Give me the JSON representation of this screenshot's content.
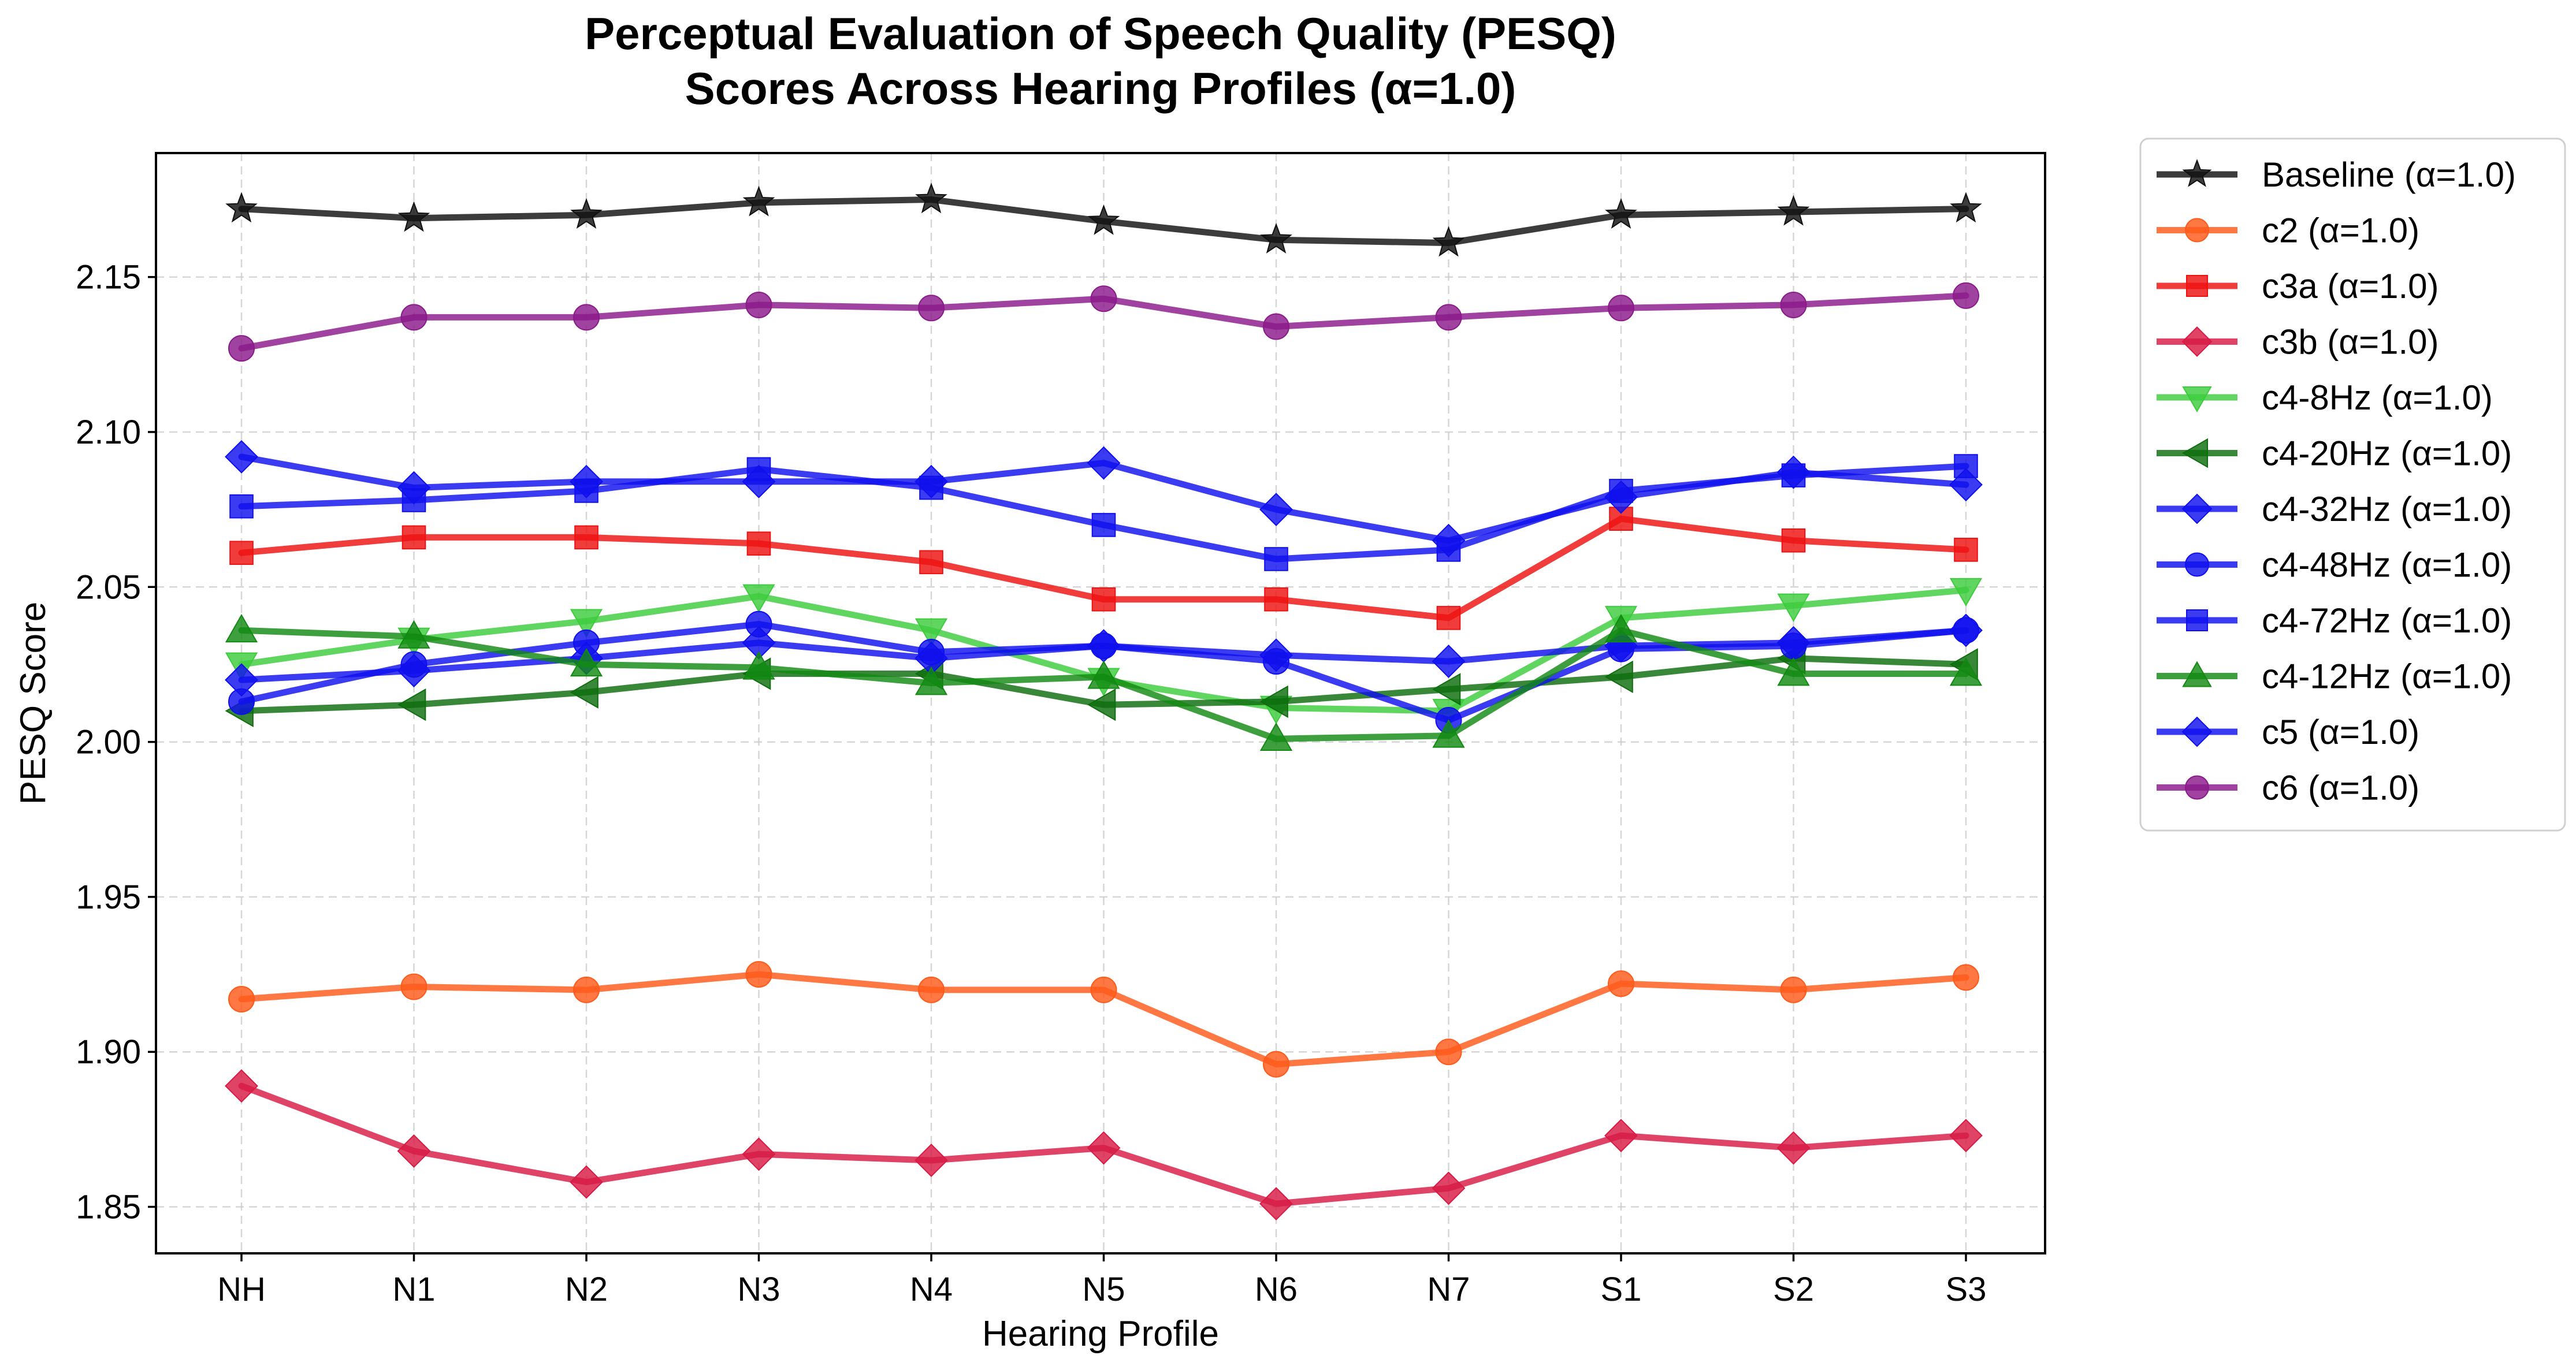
{
  "chart_data": {
    "type": "line",
    "title": [
      "Perceptual Evaluation of Speech Quality (PESQ)",
      "Scores Across Hearing Profiles (α=1.0)"
    ],
    "xlabel": "Hearing Profile",
    "ylabel": "PESQ Score",
    "categories": [
      "NH",
      "N1",
      "N2",
      "N3",
      "N4",
      "N5",
      "N6",
      "N7",
      "S1",
      "S2",
      "S3"
    ],
    "ylim": [
      1.835,
      2.19
    ],
    "yticks": [
      1.85,
      1.9,
      1.95,
      2.0,
      2.05,
      2.1,
      2.15
    ],
    "ytick_labels": [
      "1.85",
      "1.90",
      "1.95",
      "2.00",
      "2.05",
      "2.10",
      "2.15"
    ],
    "grid": true,
    "legend_position": "outside-right-top",
    "series": [
      {
        "name": "Baseline (α=1.0)",
        "color": "#111111",
        "marker": "star",
        "values": [
          2.172,
          2.169,
          2.17,
          2.174,
          2.175,
          2.168,
          2.162,
          2.161,
          2.17,
          2.171,
          2.172
        ]
      },
      {
        "name": "c2 (α=1.0)",
        "color": "#ff5a1a",
        "marker": "circle",
        "values": [
          1.917,
          1.921,
          1.92,
          1.925,
          1.92,
          1.92,
          1.896,
          1.9,
          1.922,
          1.92,
          1.924
        ]
      },
      {
        "name": "c3a (α=1.0)",
        "color": "#ee1111",
        "marker": "square",
        "values": [
          2.061,
          2.066,
          2.066,
          2.064,
          2.058,
          2.046,
          2.046,
          2.04,
          2.072,
          2.065,
          2.062
        ]
      },
      {
        "name": "c3b (α=1.0)",
        "color": "#d81b45",
        "marker": "diamond",
        "values": [
          1.889,
          1.868,
          1.858,
          1.867,
          1.865,
          1.869,
          1.851,
          1.856,
          1.873,
          1.869,
          1.873
        ]
      },
      {
        "name": "c4-8Hz (α=1.0)",
        "color": "#3dcc3d",
        "marker": "triangle-down",
        "values": [
          2.025,
          2.033,
          2.039,
          2.047,
          2.036,
          2.02,
          2.011,
          2.01,
          2.04,
          2.044,
          2.049
        ]
      },
      {
        "name": "c4-20Hz (α=1.0)",
        "color": "#0e6e0e",
        "marker": "triangle-left",
        "values": [
          2.01,
          2.012,
          2.016,
          2.022,
          2.022,
          2.012,
          2.013,
          2.017,
          2.021,
          2.027,
          2.025
        ]
      },
      {
        "name": "c4-32Hz (α=1.0)",
        "color": "#1010ee",
        "marker": "diamond",
        "values": [
          2.02,
          2.023,
          2.027,
          2.032,
          2.027,
          2.031,
          2.028,
          2.026,
          2.031,
          2.032,
          2.036
        ]
      },
      {
        "name": "c4-48Hz (α=1.0)",
        "color": "#1010ee",
        "marker": "circle",
        "values": [
          2.013,
          2.025,
          2.032,
          2.038,
          2.029,
          2.031,
          2.026,
          2.007,
          2.03,
          2.031,
          2.036
        ]
      },
      {
        "name": "c4-72Hz (α=1.0)",
        "color": "#1010ee",
        "marker": "square",
        "values": [
          2.076,
          2.078,
          2.081,
          2.088,
          2.082,
          2.07,
          2.059,
          2.062,
          2.081,
          2.086,
          2.089
        ]
      },
      {
        "name": "c4-12Hz (α=1.0)",
        "color": "#128a12",
        "marker": "triangle-up",
        "values": [
          2.036,
          2.034,
          2.025,
          2.024,
          2.019,
          2.021,
          2.001,
          2.002,
          2.036,
          2.022,
          2.022
        ]
      },
      {
        "name": "c5 (α=1.0)",
        "color": "#1010ee",
        "marker": "diamond",
        "values": [
          2.092,
          2.082,
          2.084,
          2.084,
          2.084,
          2.09,
          2.075,
          2.065,
          2.079,
          2.087,
          2.083
        ]
      },
      {
        "name": "c6 (α=1.0)",
        "color": "#8b1a8b",
        "marker": "circle",
        "values": [
          2.127,
          2.137,
          2.137,
          2.141,
          2.14,
          2.143,
          2.134,
          2.137,
          2.14,
          2.141,
          2.144
        ]
      }
    ]
  }
}
